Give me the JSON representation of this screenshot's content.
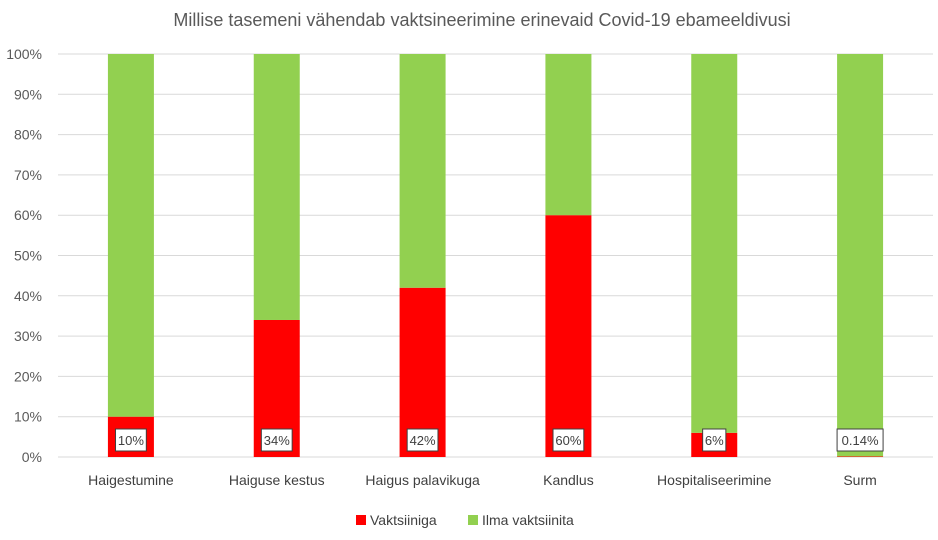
{
  "chart_data": {
    "type": "bar",
    "stacked": true,
    "title": "Millise tasemeni vähendab vaktsineerimine erinevaid Covid-19 ebameeldivusi",
    "categories": [
      "Haigestumine",
      "Haiguse kestus",
      "Haigus palavikuga",
      "Kandlus",
      "Hospitaliseerimine",
      "Surm"
    ],
    "series": [
      {
        "name": "Vaktsiiniga",
        "values": [
          10,
          34,
          42,
          60,
          6,
          0.14
        ],
        "color": "#ff0000"
      },
      {
        "name": "Ilma vaktsiinita",
        "values": [
          90,
          66,
          58,
          40,
          94,
          99.86
        ],
        "color": "#92d050"
      }
    ],
    "data_labels": [
      "10%",
      "34%",
      "42%",
      "60%",
      "6%",
      "0.14%"
    ],
    "y_ticks": [
      "0%",
      "10%",
      "20%",
      "30%",
      "40%",
      "50%",
      "60%",
      "70%",
      "80%",
      "90%",
      "100%"
    ],
    "ylim": [
      0,
      100
    ],
    "grid": true,
    "legend_position": "bottom"
  }
}
